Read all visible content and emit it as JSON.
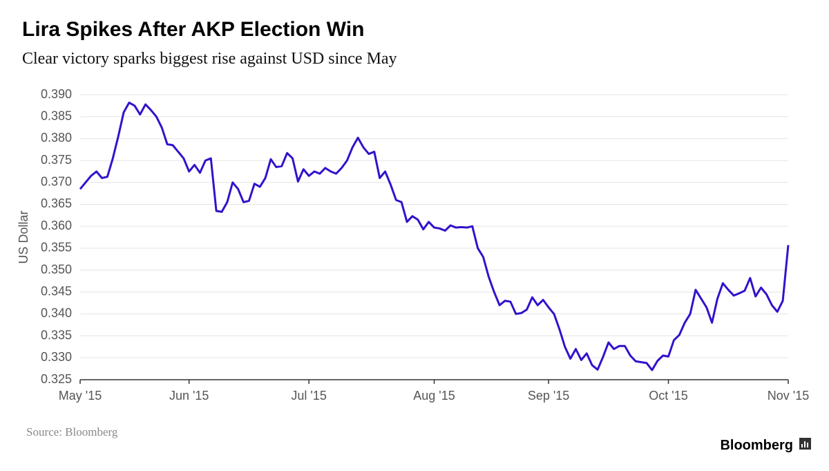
{
  "chart_data": {
    "type": "line",
    "title": "Lira Spikes After AKP Election Win",
    "subtitle": "Clear victory sparks biggest rise against USD since May",
    "y_label": "US Dollar",
    "source": "Source: Bloomberg",
    "brand": "Bloomberg",
    "x": [
      0,
      1,
      2,
      3,
      4,
      5,
      6,
      7,
      8,
      9,
      10,
      11,
      12,
      13,
      14,
      15,
      16,
      17,
      18,
      19,
      20,
      21,
      22,
      23,
      24,
      25,
      26,
      27,
      28,
      29,
      30,
      31,
      32,
      33,
      34,
      35,
      36,
      37,
      38,
      39,
      40,
      41,
      42,
      43,
      44,
      45,
      46,
      47,
      48,
      49,
      50,
      51,
      52,
      53,
      54,
      55,
      56,
      57,
      58,
      59,
      60,
      61,
      62,
      63,
      64,
      65,
      66,
      67,
      68,
      69,
      70,
      71,
      72,
      73,
      74,
      75,
      76,
      77,
      78,
      79,
      80,
      81,
      82,
      83,
      84,
      85,
      86,
      87,
      88,
      89,
      90,
      91,
      92,
      93,
      94,
      95,
      96,
      97,
      98,
      99,
      100,
      101,
      102,
      103,
      104,
      105,
      106,
      107,
      108,
      109,
      110,
      111,
      112,
      113,
      114,
      115,
      116,
      117,
      118,
      119,
      120,
      121,
      122,
      123,
      124,
      125,
      126,
      127,
      128,
      129,
      130
    ],
    "series": [
      {
        "name": "USD",
        "color": "#3311cc",
        "values": [
          0.3685,
          0.37,
          0.3715,
          0.3725,
          0.371,
          0.3713,
          0.3755,
          0.3805,
          0.386,
          0.3882,
          0.3875,
          0.3855,
          0.3878,
          0.3865,
          0.385,
          0.3825,
          0.3787,
          0.3785,
          0.377,
          0.3755,
          0.3725,
          0.374,
          0.3722,
          0.375,
          0.3755,
          0.3635,
          0.3633,
          0.3655,
          0.37,
          0.3685,
          0.3655,
          0.3658,
          0.3697,
          0.369,
          0.371,
          0.3753,
          0.3735,
          0.3737,
          0.3767,
          0.3755,
          0.3702,
          0.373,
          0.3715,
          0.3725,
          0.372,
          0.3733,
          0.3725,
          0.372,
          0.3733,
          0.375,
          0.378,
          0.3802,
          0.378,
          0.3765,
          0.377,
          0.371,
          0.3725,
          0.3695,
          0.366,
          0.3655,
          0.361,
          0.3623,
          0.3615,
          0.3593,
          0.361,
          0.3597,
          0.3595,
          0.359,
          0.3602,
          0.3597,
          0.3598,
          0.3597,
          0.36,
          0.355,
          0.353,
          0.3485,
          0.345,
          0.342,
          0.343,
          0.3428,
          0.34,
          0.3402,
          0.341,
          0.3438,
          0.342,
          0.3432,
          0.3415,
          0.34,
          0.3365,
          0.3325,
          0.3298,
          0.332,
          0.3295,
          0.331,
          0.3283,
          0.3273,
          0.3302,
          0.3335,
          0.332,
          0.3327,
          0.3327,
          0.3305,
          0.3292,
          0.329,
          0.3288,
          0.3272,
          0.3293,
          0.3305,
          0.3303,
          0.334,
          0.3352,
          0.338,
          0.34,
          0.3455,
          0.3435,
          0.3415,
          0.338,
          0.3435,
          0.347,
          0.3455,
          0.3442,
          0.3447,
          0.3453,
          0.3482,
          0.344,
          0.346,
          0.3445,
          0.342,
          0.3405,
          0.343,
          0.3557
        ]
      }
    ],
    "xlim": [
      0,
      130
    ],
    "xticks": [
      {
        "value": 0,
        "label": "May '15"
      },
      {
        "value": 20,
        "label": "Jun '15"
      },
      {
        "value": 42,
        "label": "Jul '15"
      },
      {
        "value": 65,
        "label": "Aug '15"
      },
      {
        "value": 86,
        "label": "Sep '15"
      },
      {
        "value": 108,
        "label": "Oct '15"
      },
      {
        "value": 130,
        "label": "Nov '15"
      }
    ],
    "ylim": [
      0.325,
      0.39
    ],
    "yticks": [
      0.325,
      {
        "value": 0.33,
        "label": "0.330"
      },
      0.335,
      {
        "value": 0.34,
        "label": "0.340"
      },
      0.345,
      {
        "value": 0.35,
        "label": "0.350"
      },
      0.355,
      {
        "value": 0.36,
        "label": "0.360"
      },
      0.365,
      {
        "value": 0.37,
        "label": "0.370"
      },
      0.375,
      {
        "value": 0.38,
        "label": "0.380"
      },
      0.385,
      {
        "value": 0.39,
        "label": "0.390"
      }
    ],
    "grid": true
  }
}
